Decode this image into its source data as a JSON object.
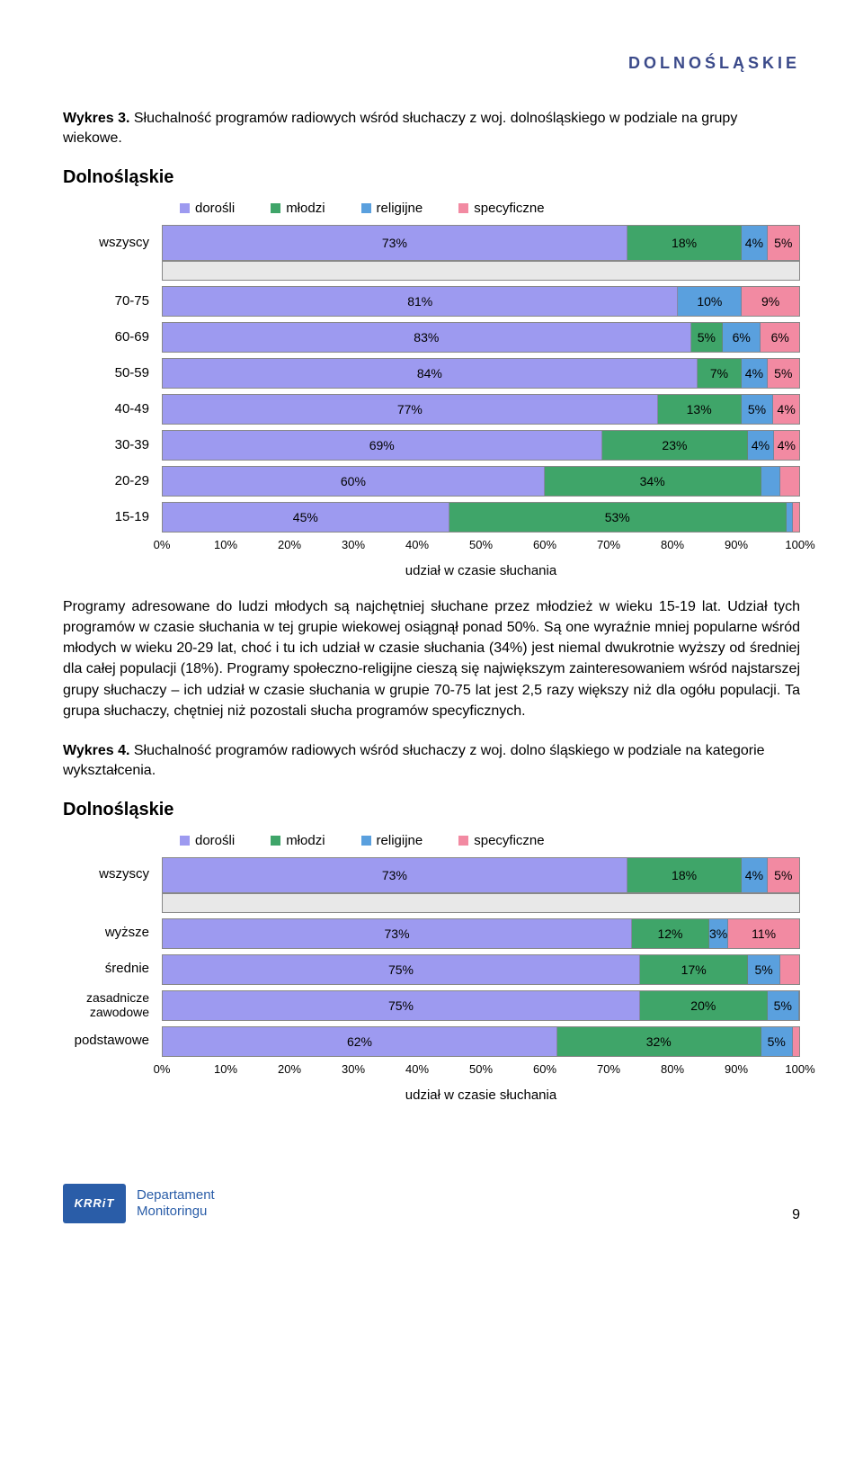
{
  "region_header": "DOLNOŚLĄSKIE",
  "caption3_prefix": "Wykres 3.",
  "caption3_rest": " Słuchalność programów radiowych wśród słuchaczy z woj. dolnośląskiego w podziale na grupy wiekowe.",
  "caption4_prefix": "Wykres 4.",
  "caption4_rest": " Słuchalność programów radiowych wśród słuchaczy z woj. dolno śląskiego w podziale na kategorie wykształcenia.",
  "chart_title": "Dolnośląskie",
  "legend": {
    "dorosli": {
      "label": "dorośli",
      "color": "#9d9af0"
    },
    "mlodzi": {
      "label": "młodzi",
      "color": "#3fa569"
    },
    "religijne": {
      "label": "religijne",
      "color": "#5aa0de"
    },
    "specyficzne": {
      "label": "specyficzne",
      "color": "#f28aa2"
    }
  },
  "colors": {
    "dorosli": "#9d9af0",
    "mlodzi": "#3fa569",
    "religijne": "#5aa0de",
    "specyficzne": "#f28aa2",
    "gap_bg": "#e8e8e8",
    "border": "#888888"
  },
  "chart3": {
    "wszyscy_label": "wszyscy",
    "wszyscy_values": [
      73,
      18,
      4,
      5
    ],
    "rows": [
      {
        "label": "70-75",
        "values": [
          81,
          10,
          9
        ],
        "show": [
          "81%",
          "10%",
          "9%"
        ],
        "segs": 3
      },
      {
        "label": "60-69",
        "values": [
          83,
          5,
          6,
          6
        ],
        "show": [
          "83%",
          "5%",
          "6%",
          "6%"
        ]
      },
      {
        "label": "50-59",
        "values": [
          84,
          7,
          4,
          5
        ],
        "show": [
          "84%",
          "7%",
          "4%",
          "5%"
        ]
      },
      {
        "label": "40-49",
        "values": [
          77,
          13,
          5,
          4
        ],
        "show": [
          "77%",
          "13%",
          "5%",
          "4%"
        ]
      },
      {
        "label": "30-39",
        "values": [
          69,
          23,
          4,
          4
        ],
        "show": [
          "69%",
          "23%",
          "4%",
          "4%"
        ]
      },
      {
        "label": "20-29",
        "values": [
          60,
          34,
          3,
          3
        ],
        "show": [
          "60%",
          "34%",
          "",
          ""
        ]
      },
      {
        "label": "15-19",
        "values": [
          45,
          53,
          1,
          1
        ],
        "show": [
          "45%",
          "53%",
          "",
          ""
        ]
      }
    ],
    "ticks": [
      "0%",
      "10%",
      "20%",
      "30%",
      "40%",
      "50%",
      "60%",
      "70%",
      "80%",
      "90%",
      "100%"
    ],
    "axis_title": "udział w czasie słuchania"
  },
  "chart4": {
    "wszyscy_label": "wszyscy",
    "wszyscy_values": [
      73,
      18,
      4,
      5
    ],
    "rows": [
      {
        "label": "wyższe",
        "values": [
          73,
          12,
          3,
          11
        ],
        "show": [
          "73%",
          "12%",
          "3%",
          "11%"
        ]
      },
      {
        "label": "średnie",
        "values": [
          75,
          17,
          5,
          3
        ],
        "show": [
          "75%",
          "17%",
          "5%",
          ""
        ]
      },
      {
        "label": "zasadnicze zawodowe",
        "multiline": true,
        "values": [
          75,
          20,
          5,
          0
        ],
        "show": [
          "75%",
          "20%",
          "5%",
          ""
        ]
      },
      {
        "label": "podstawowe",
        "values": [
          62,
          32,
          5,
          1
        ],
        "show": [
          "62%",
          "32%",
          "5%",
          ""
        ]
      }
    ],
    "ticks": [
      "0%",
      "10%",
      "20%",
      "30%",
      "40%",
      "50%",
      "60%",
      "70%",
      "80%",
      "90%",
      "100%"
    ],
    "axis_title": "udział w czasie słuchania"
  },
  "body_text": "Programy adresowane do ludzi młodych są najchętniej słuchane przez młodzież w wieku 15-19 lat. Udział tych programów w czasie słuchania w tej grupie wiekowej osiągnął ponad 50%. Są one wyraźnie mniej popularne wśród młodych w wieku 20-29 lat, choć i tu ich udział w czasie słuchania (34%) jest niemal dwukrotnie wyższy od średniej dla całej populacji (18%). Programy społeczno-religijne cieszą się największym zainteresowaniem wśród najstarszej grupy słuchaczy – ich udział w czasie słuchania w grupie 70-75 lat jest 2,5 razy większy niż dla ogółu populacji. Ta grupa słuchaczy, chętniej niż pozostali słucha programów specyficznych.",
  "footer": {
    "logo": "KRRiT",
    "dept1": "Departament",
    "dept2": "Monitoringu",
    "page": "9"
  },
  "wszyscy_show": [
    "73%",
    "18%",
    "4%",
    "5%"
  ]
}
